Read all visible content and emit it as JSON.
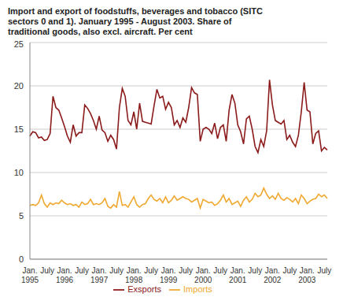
{
  "chart_data": {
    "type": "line",
    "title": "Import and export of foodstuffs, beverages and tobacco (SITC sectors 0 and 1). January 1995 - August 2003. Share of traditional goods, also excl. aircraft. Per cent",
    "categories": [
      "Jan. 1995",
      null,
      null,
      null,
      null,
      null,
      "July",
      null,
      null,
      null,
      null,
      null,
      "Jan. 1996",
      null,
      null,
      null,
      null,
      null,
      "July",
      null,
      null,
      null,
      null,
      null,
      "Jan. 1997",
      null,
      null,
      null,
      null,
      null,
      "July",
      null,
      null,
      null,
      null,
      null,
      "Jan. 1998",
      null,
      null,
      null,
      null,
      null,
      "July",
      null,
      null,
      null,
      null,
      null,
      "Jan. 1999",
      null,
      null,
      null,
      null,
      null,
      "July",
      null,
      null,
      null,
      null,
      null,
      "Jan. 2000",
      null,
      null,
      null,
      null,
      null,
      "July",
      null,
      null,
      null,
      null,
      null,
      "Jan. 2001",
      null,
      null,
      null,
      null,
      null,
      "July",
      null,
      null,
      null,
      null,
      null,
      "Jan. 2002",
      null,
      null,
      null,
      null,
      null,
      "July",
      null,
      null,
      null,
      null,
      null,
      "Jan. 2003",
      null,
      null,
      null,
      null,
      null,
      "July",
      null
    ],
    "series": [
      {
        "name": "Exsports",
        "color": "#8b1a1a",
        "values": [
          14.2,
          14.7,
          14.6,
          14.0,
          14.1,
          13.7,
          13.8,
          14.5,
          18.8,
          17.5,
          17.2,
          16.3,
          15.3,
          14.2,
          13.5,
          15.5,
          14.2,
          14.6,
          14.6,
          17.8,
          17.4,
          16.8,
          16.0,
          15.0,
          16.5,
          14.9,
          14.6,
          13.6,
          14.3,
          13.8,
          12.7,
          17.5,
          19.7,
          18.8,
          16.0,
          15.5,
          17.0,
          15.0,
          18.0,
          15.9,
          15.8,
          15.7,
          15.6,
          17.7,
          19.6,
          18.6,
          18.8,
          17.3,
          18.1,
          17.5,
          15.5,
          16.0,
          15.2,
          16.3,
          15.8,
          17.5,
          19.8,
          19.2,
          19.0,
          13.6,
          15.0,
          15.2,
          15.0,
          14.5,
          15.7,
          13.9,
          15.2,
          15.5,
          13.6,
          17.2,
          19.0,
          18.0,
          15.5,
          14.7,
          13.3,
          16.2,
          16.5,
          15.0,
          13.0,
          12.3,
          13.8,
          13.0,
          14.8,
          20.7,
          17.8,
          16.0,
          15.8,
          15.6,
          16.0,
          13.8,
          14.3,
          13.5,
          13.0,
          14.3,
          17.0,
          20.4,
          17.2,
          17.0,
          13.3,
          14.5,
          14.8,
          12.5,
          12.9,
          12.6
        ]
      },
      {
        "name": "Imports",
        "color": "#f0a830",
        "values": [
          6.2,
          6.3,
          6.2,
          6.5,
          7.4,
          6.4,
          6.0,
          6.5,
          6.3,
          6.5,
          6.4,
          6.8,
          6.5,
          6.3,
          6.4,
          6.2,
          6.3,
          6.0,
          6.6,
          6.3,
          6.4,
          6.9,
          6.3,
          6.4,
          6.3,
          6.5,
          7.0,
          6.1,
          5.9,
          6.3,
          6.0,
          7.8,
          6.2,
          6.3,
          6.0,
          6.6,
          7.2,
          6.3,
          6.0,
          6.3,
          6.4,
          7.0,
          7.4,
          6.9,
          6.7,
          7.0,
          6.5,
          7.2,
          6.5,
          6.8,
          7.3,
          6.8,
          7.0,
          7.2,
          7.0,
          6.9,
          6.6,
          6.8,
          7.0,
          5.9,
          6.9,
          6.7,
          6.5,
          6.6,
          6.2,
          6.4,
          6.8,
          7.4,
          6.6,
          7.0,
          6.3,
          6.5,
          6.7,
          6.1,
          6.8,
          7.2,
          6.6,
          6.9,
          7.6,
          7.2,
          7.4,
          8.2,
          7.5,
          7.0,
          7.3,
          6.9,
          7.6,
          7.0,
          6.8,
          7.1,
          6.9,
          6.6,
          7.0,
          6.4,
          7.4,
          7.0,
          6.4,
          6.7,
          6.9,
          7.0,
          7.5,
          7.2,
          7.4,
          7.0
        ]
      }
    ],
    "ylim": [
      0,
      25
    ],
    "yticks": [
      0,
      5,
      10,
      15,
      20,
      25
    ],
    "grid": true
  }
}
